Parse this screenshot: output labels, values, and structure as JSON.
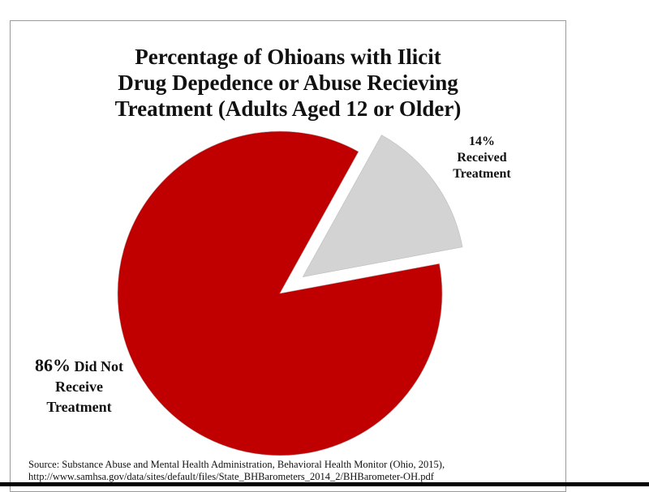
{
  "chart_data": {
    "type": "pie",
    "title": [
      "Percentage of Ohioans with Ilicit",
      "Drug Depedence or Abuse Recieving",
      "Treatment (Adults Aged 12 or Older)"
    ],
    "categories": [
      "Received Treatment",
      "Did Not Receive Treatment"
    ],
    "values": [
      14,
      86
    ],
    "value_labels": [
      "14%",
      "86%"
    ],
    "colors": [
      "#d3d3d3",
      "#c00000"
    ],
    "exploded": [
      true,
      false
    ],
    "source": [
      "Source: Substance Abuse and Mental Health Administration, Behavioral Health Monitor (Ohio, 2015),",
      "http://www.samhsa.gov/data/sites/default/files/State_BHBarometers_2014_2/BHBarometer-OH.pdf"
    ]
  }
}
